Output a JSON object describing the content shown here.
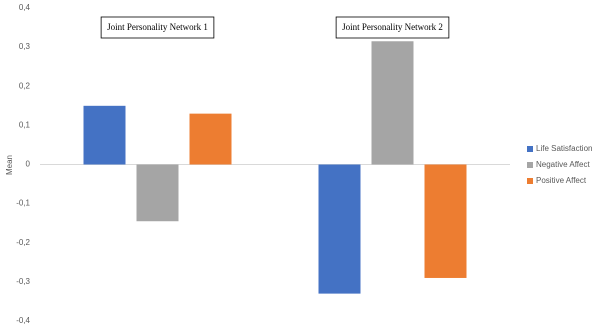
{
  "chart_data": {
    "type": "bar",
    "y_label": "Mean",
    "categories": [
      "Joint Personality Network 1",
      "Joint Personality Network 2"
    ],
    "series": [
      {
        "name": "Life Satisfaction",
        "color": "#4472c4",
        "values": [
          0.15,
          -0.33
        ]
      },
      {
        "name": "Negative Affect",
        "color": "#a5a5a5",
        "values": [
          -0.145,
          0.315
        ]
      },
      {
        "name": "Positive Affect",
        "color": "#ed7d31",
        "values": [
          0.13,
          -0.29
        ]
      }
    ],
    "ylim": [
      -0.4,
      0.4
    ],
    "yticks": [
      {
        "value": -0.4,
        "label": "-0,4"
      },
      {
        "value": -0.3,
        "label": "-0,3"
      },
      {
        "value": -0.2,
        "label": "-0,2"
      },
      {
        "value": -0.1,
        "label": "-0,1"
      },
      0,
      {
        "value": 0.1,
        "label": "0,1"
      },
      {
        "value": 0.2,
        "label": "0,2"
      },
      {
        "value": 0.3,
        "label": "0,3"
      },
      {
        "value": 0.4,
        "label": "0,4"
      }
    ],
    "grid": false,
    "legend": "right"
  }
}
